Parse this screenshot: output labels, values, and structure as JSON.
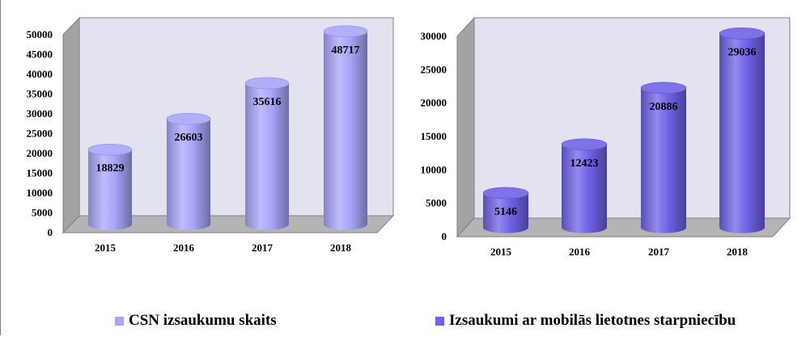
{
  "colors": {
    "series1": "#a8a6fa",
    "series2": "#6e63e6",
    "wall": "#e3e3f0",
    "floor": "#b4b4b4"
  },
  "chart_data": [
    {
      "type": "bar",
      "categories": [
        "2015",
        "2016",
        "2017",
        "2018"
      ],
      "yticks": [
        "0",
        "5000",
        "10000",
        "15000",
        "20000",
        "25000",
        "30000",
        "35000",
        "40000",
        "45000",
        "50000"
      ],
      "ylim": [
        0,
        50000
      ],
      "series": [
        {
          "name": "CSN izsaukumu skaits",
          "values": [
            18829,
            26603,
            35616,
            48717
          ]
        }
      ],
      "data_labels": [
        "18829",
        "26603",
        "35616",
        "48717"
      ],
      "legend": "bottom",
      "grid": false,
      "style": "3d-cylinder"
    },
    {
      "type": "bar",
      "categories": [
        "2015",
        "2016",
        "2017",
        "2018"
      ],
      "yticks": [
        "0",
        "5000",
        "10000",
        "15000",
        "20000",
        "25000",
        "30000"
      ],
      "ylim": [
        0,
        30000
      ],
      "series": [
        {
          "name": "Izsaukumi ar mobilās lietotnes starpniecību",
          "values": [
            5146,
            12423,
            20886,
            29036
          ]
        }
      ],
      "data_labels": [
        "5146",
        "12423",
        "20886",
        "29036"
      ],
      "legend": "bottom",
      "grid": false,
      "style": "3d-cylinder"
    }
  ]
}
